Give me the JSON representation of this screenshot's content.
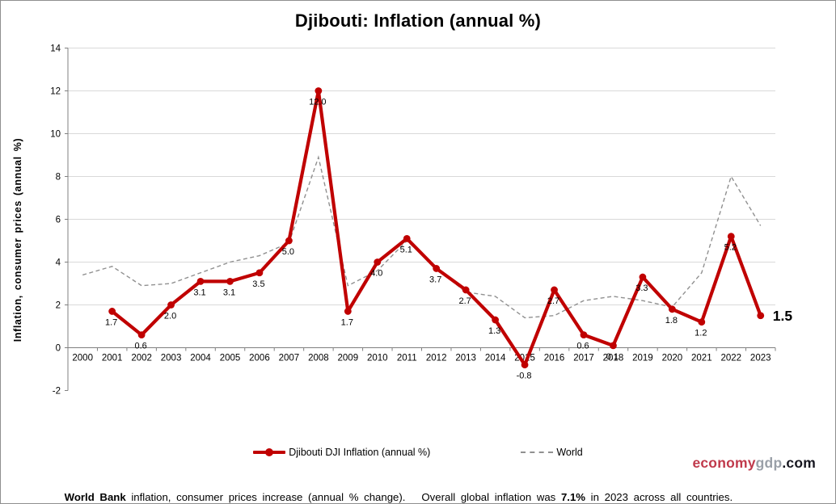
{
  "title": "Djibouti: Inflation (annual %)",
  "y_axis_label": "Inflation, consumer prices (annual %)",
  "legend": {
    "series1": "Djibouti DJI Inflation (annual %)",
    "series2": "World"
  },
  "logo": {
    "part1": "economy",
    "part2": "gdp",
    "part3": ".com"
  },
  "footer": {
    "bold1": "World Bank",
    "text1": " inflation, consumer prices increase (annual % change).   Overall global inflation was ",
    "bold2": "7.1%",
    "text2": " in 2023 across all countries."
  },
  "colors": {
    "djibouti_line": "#c00000",
    "world_line": "#909090",
    "grid": "#d9d9d9",
    "axis": "#808080",
    "label_text": "#000000",
    "logo_red": "#c0394b",
    "logo_gray": "#9aa0a8",
    "logo_dark": "#16161f"
  },
  "chart_data": {
    "type": "line",
    "title": "Djibouti: Inflation (annual %)",
    "xlabel": "",
    "ylabel": "Inflation, consumer prices (annual %)",
    "ylim": [
      -2,
      14
    ],
    "ytick_step": 2,
    "grid": true,
    "legend_position": "bottom",
    "x": [
      2000,
      2001,
      2002,
      2003,
      2004,
      2005,
      2006,
      2007,
      2008,
      2009,
      2010,
      2011,
      2012,
      2013,
      2014,
      2015,
      2016,
      2017,
      2018,
      2019,
      2020,
      2021,
      2022,
      2023
    ],
    "series": [
      {
        "name": "Djibouti DJI Inflation (annual %)",
        "color": "#c00000",
        "style": "solid-markers",
        "values": [
          null,
          1.7,
          0.6,
          2.0,
          3.1,
          3.1,
          3.5,
          5.0,
          12.0,
          1.7,
          4.0,
          5.1,
          3.7,
          2.7,
          1.3,
          -0.8,
          2.7,
          0.6,
          0.1,
          3.3,
          1.8,
          1.2,
          5.2,
          1.5
        ],
        "labels": [
          "",
          "1.7",
          "0.6",
          "2.0",
          "3.1",
          "3.1",
          "3.5",
          "5.0",
          "12.0",
          "1.7",
          "4.0",
          "5.1",
          "3.7",
          "2.7",
          "1.3",
          "-0.8",
          "2.7",
          "0.6",
          "0.1",
          "3.3",
          "1.8",
          "1.2",
          "5.2",
          "1.5"
        ]
      },
      {
        "name": "World",
        "color": "#909090",
        "style": "dashed",
        "values": [
          3.4,
          3.8,
          2.9,
          3.0,
          3.5,
          4.0,
          4.3,
          4.9,
          8.9,
          2.9,
          3.6,
          5.0,
          3.7,
          2.6,
          2.4,
          1.4,
          1.5,
          2.2,
          2.4,
          2.2,
          1.9,
          3.5,
          8.0,
          5.7
        ]
      }
    ],
    "final_value_label": "1.5"
  }
}
